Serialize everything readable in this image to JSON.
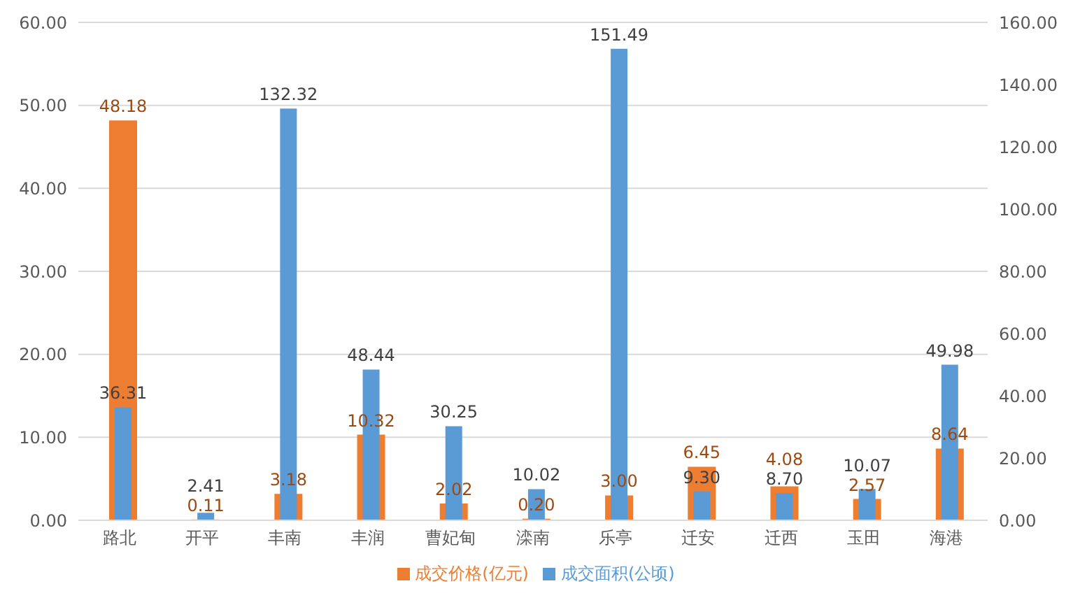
{
  "chart_data": {
    "type": "bar",
    "categories": [
      "路北",
      "开平",
      "丰南",
      "丰润",
      "曹妃甸",
      "滦南",
      "乐亭",
      "迁安",
      "迁西",
      "玉田",
      "海港"
    ],
    "series": [
      {
        "name": "成交价格(亿元)",
        "color": "#ed7d31",
        "values": [
          48.18,
          0.11,
          3.18,
          10.32,
          2.02,
          0.2,
          3.0,
          6.45,
          4.08,
          2.57,
          8.64
        ],
        "value_labels": [
          "48.18",
          "0.11",
          "3.18",
          "10.32",
          "2.02",
          "0.20",
          "3.00",
          "6.45",
          "4.08",
          "2.57",
          "8.64"
        ]
      },
      {
        "name": "成交面积(公顷)",
        "color": "#5b9bd5",
        "axis": "y2",
        "values": [
          36.31,
          2.41,
          132.32,
          48.44,
          30.25,
          10.02,
          151.49,
          9.3,
          8.7,
          10.07,
          49.98
        ],
        "value_labels": [
          "36.31",
          "2.41",
          "132.32",
          "48.44",
          "30.25",
          "10.02",
          "151.49",
          "9.30",
          "8.70",
          "10.07",
          "49.98"
        ]
      }
    ],
    "ylim": [
      0,
      60
    ],
    "yticks": [
      {
        "value": 0,
        "label": "0.00"
      },
      {
        "value": 10,
        "label": "10.00"
      },
      {
        "value": 20,
        "label": "20.00"
      },
      {
        "value": 30,
        "label": "30.00"
      },
      {
        "value": 40,
        "label": "40.00"
      },
      {
        "value": 50,
        "label": "50.00"
      },
      {
        "value": 60,
        "label": "60.00"
      }
    ],
    "y2lim": [
      0,
      160
    ],
    "y2ticks": [
      {
        "value": 0,
        "label": "0.00"
      },
      {
        "value": 20,
        "label": "20.00"
      },
      {
        "value": 40,
        "label": "40.00"
      },
      {
        "value": 60,
        "label": "60.00"
      },
      {
        "value": 80,
        "label": "80.00"
      },
      {
        "value": 100,
        "label": "100.00"
      },
      {
        "value": 120,
        "label": "120.00"
      },
      {
        "value": 140,
        "label": "140.00"
      },
      {
        "value": 160,
        "label": "160.00"
      }
    ],
    "grid": "y",
    "legend": "bottom"
  }
}
